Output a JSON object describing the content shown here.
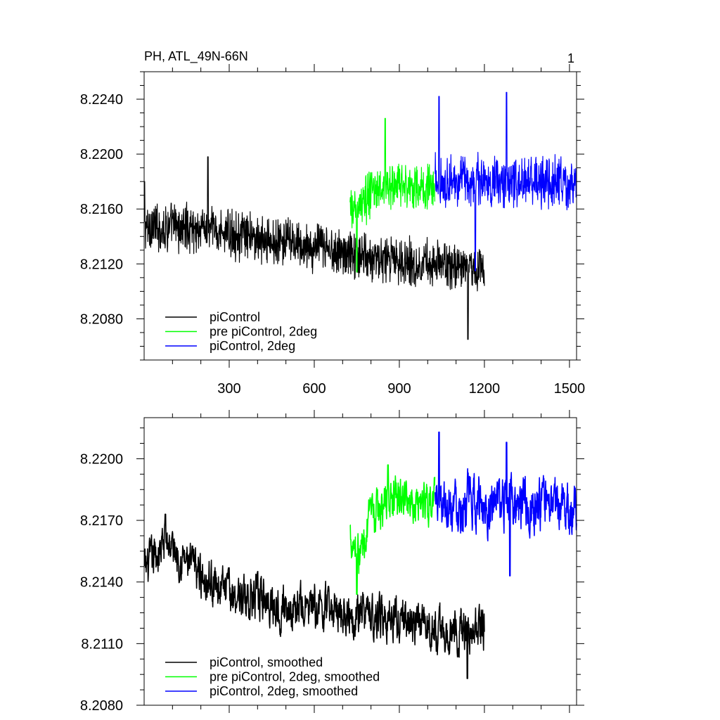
{
  "chart_data": [
    {
      "type": "line",
      "title": "PH, ATL_49N-66N",
      "panel_label": "1",
      "xlabel": "",
      "ylabel": "",
      "xlim": [
        0,
        1525
      ],
      "ylim": [
        8.205,
        8.226
      ],
      "x_ticks": [
        300,
        600,
        900,
        1200,
        1500
      ],
      "x_tick_labels": [
        "300",
        "600",
        "900",
        "1200",
        "1500"
      ],
      "y_ticks": [
        8.208,
        8.212,
        8.216,
        8.22,
        8.224
      ],
      "y_tick_labels": [
        "8.2080",
        "8.2120",
        "8.2160",
        "8.2200",
        "8.2240"
      ],
      "legend_position": "bottom-left",
      "series": [
        {
          "name": "piControl",
          "color": "#000000",
          "x_start": 1,
          "x_end": 1200,
          "trend": [
            [
              0,
              8.2147
            ],
            [
              200,
              8.2146
            ],
            [
              400,
              8.2138
            ],
            [
              600,
              8.2132
            ],
            [
              800,
              8.2125
            ],
            [
              1000,
              8.212
            ],
            [
              1200,
              8.2118
            ]
          ],
          "noise_amplitude": 0.0016,
          "peaks": [
            [
              1,
              8.218
            ],
            [
              225,
              8.2198
            ],
            [
              1142,
              8.2065
            ]
          ]
        },
        {
          "name": "pre piControl, 2deg",
          "color": "#00ff00",
          "x_start": 726,
          "x_end": 1025,
          "trend": [
            [
              726,
              8.2156
            ],
            [
              760,
              8.2162
            ],
            [
              800,
              8.2172
            ],
            [
              900,
              8.2178
            ],
            [
              1025,
              8.2175
            ]
          ],
          "noise_amplitude": 0.0016,
          "peaks": [
            [
              850,
              8.2226
            ],
            [
              750,
              8.2114
            ]
          ]
        },
        {
          "name": "piControl, 2deg",
          "color": "#0000ff",
          "x_start": 1026,
          "x_end": 1525,
          "trend": [
            [
              1026,
              8.218
            ],
            [
              1200,
              8.218
            ],
            [
              1525,
              8.2178
            ]
          ],
          "noise_amplitude": 0.0017,
          "peaks": [
            [
              1040,
              8.2242
            ],
            [
              1278,
              8.2245
            ],
            [
              1168,
              8.2115
            ]
          ]
        }
      ]
    },
    {
      "type": "line",
      "title": "",
      "xlabel": "",
      "ylabel": "",
      "xlim": [
        0,
        1525
      ],
      "ylim": [
        8.208,
        8.222
      ],
      "x_ticks": [
        300,
        600,
        900,
        1200,
        1500
      ],
      "x_tick_labels": [
        "",
        "",
        "",
        "",
        ""
      ],
      "y_ticks": [
        8.208,
        8.211,
        8.214,
        8.217,
        8.22
      ],
      "y_tick_labels": [
        "8.2080",
        "8.2110",
        "8.2140",
        "8.2170",
        "8.2200"
      ],
      "legend_position": "bottom-left",
      "series": [
        {
          "name": "piControl, smoothed",
          "color": "#000000",
          "x_start": 1,
          "x_end": 1200,
          "trend": [
            [
              0,
              8.2145
            ],
            [
              80,
              8.216
            ],
            [
              160,
              8.2148
            ],
            [
              300,
              8.2135
            ],
            [
              500,
              8.2128
            ],
            [
              700,
              8.2126
            ],
            [
              900,
              8.2122
            ],
            [
              1050,
              8.2115
            ],
            [
              1200,
              8.2118
            ]
          ],
          "noise_amplitude": 0.0009,
          "peaks": [
            [
              75,
              8.2173
            ],
            [
              1140,
              8.2093
            ]
          ]
        },
        {
          "name": "pre piControl, 2deg, smoothed",
          "color": "#00ff00",
          "x_start": 726,
          "x_end": 1025,
          "trend": [
            [
              726,
              8.2165
            ],
            [
              760,
              8.2153
            ],
            [
              790,
              8.2168
            ],
            [
              860,
              8.218
            ],
            [
              1025,
              8.218
            ]
          ],
          "noise_amplitude": 0.0009,
          "peaks": [
            [
              860,
              8.2197
            ],
            [
              750,
              8.2134
            ]
          ]
        },
        {
          "name": "piControl, 2deg, smoothed",
          "color": "#0000ff",
          "x_start": 1026,
          "x_end": 1525,
          "trend": [
            [
              1026,
              8.218
            ],
            [
              1200,
              8.2178
            ],
            [
              1525,
              8.2176
            ]
          ],
          "noise_amplitude": 0.0011,
          "peaks": [
            [
              1040,
              8.2213
            ],
            [
              1278,
              8.2208
            ],
            [
              1290,
              8.2143
            ]
          ]
        }
      ]
    }
  ]
}
